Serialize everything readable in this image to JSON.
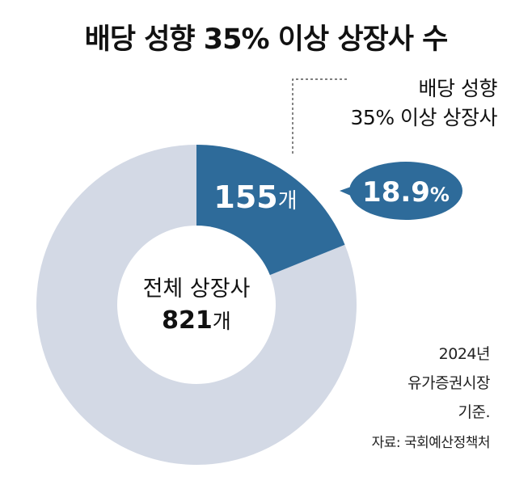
{
  "title": "배당 성향 35% 이상 상장사 수",
  "chart_data": {
    "type": "pie",
    "donut": true,
    "total": 821,
    "total_label": "전체 상장사",
    "total_value_text": "821",
    "unit": "개",
    "slices": [
      {
        "label": "배당 성향 35% 이상 상장사",
        "value": 155,
        "value_text": "155",
        "percent_text": "18.9",
        "percent_sign": "%"
      },
      {
        "label": "",
        "value": 666
      }
    ],
    "callout_lines": [
      "배당 성향",
      "35% 이상 상장사"
    ],
    "colors": {
      "highlight": "#2e6b9a",
      "rest": "#d3d9e5",
      "hole": "#ffffff"
    }
  },
  "note": {
    "year": "2024년",
    "market": "유가증권시장",
    "basis": "기준.",
    "source": "자료: 국회예산정책처"
  }
}
